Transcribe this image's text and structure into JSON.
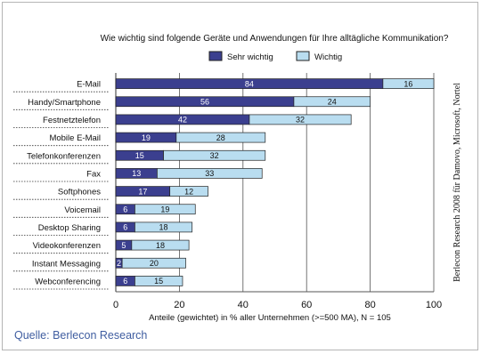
{
  "source": "Quelle:  Berlecon Research",
  "side_note": "Berlecon Research 2008 für Damovo, Microsoft, Nortel",
  "colors": {
    "dark": "#3b3f8f",
    "light": "#b9ddf0",
    "stroke": "#222222"
  },
  "chart_data": {
    "type": "bar",
    "orientation": "horizontal",
    "stacked": true,
    "title": "Wie wichtig sind folgende Geräte und Anwendungen für Ihre alltägliche Kommunikation?",
    "xlabel": "Anteile (gewichtet) in % aller Unternehmen (>=500 MA), N = 105",
    "xlim": [
      0,
      100
    ],
    "xticks": [
      0,
      20,
      40,
      60,
      80,
      100
    ],
    "legend_position": "top",
    "categories": [
      "E-Mail",
      "Handy/Smartphone",
      "Festnetztelefon",
      "Mobile E-Mail",
      "Telefonkonferenzen",
      "Fax",
      "Softphones",
      "Voicemail",
      "Desktop Sharing",
      "Videokonferenzen",
      "Instant Messaging",
      "Webconferencing"
    ],
    "series": [
      {
        "name": "Sehr wichtig",
        "values": [
          84,
          56,
          42,
          19,
          15,
          13,
          17,
          6,
          6,
          5,
          2,
          6
        ]
      },
      {
        "name": "Wichtig",
        "values": [
          16,
          24,
          32,
          28,
          32,
          33,
          12,
          19,
          18,
          18,
          20,
          15
        ]
      }
    ]
  }
}
